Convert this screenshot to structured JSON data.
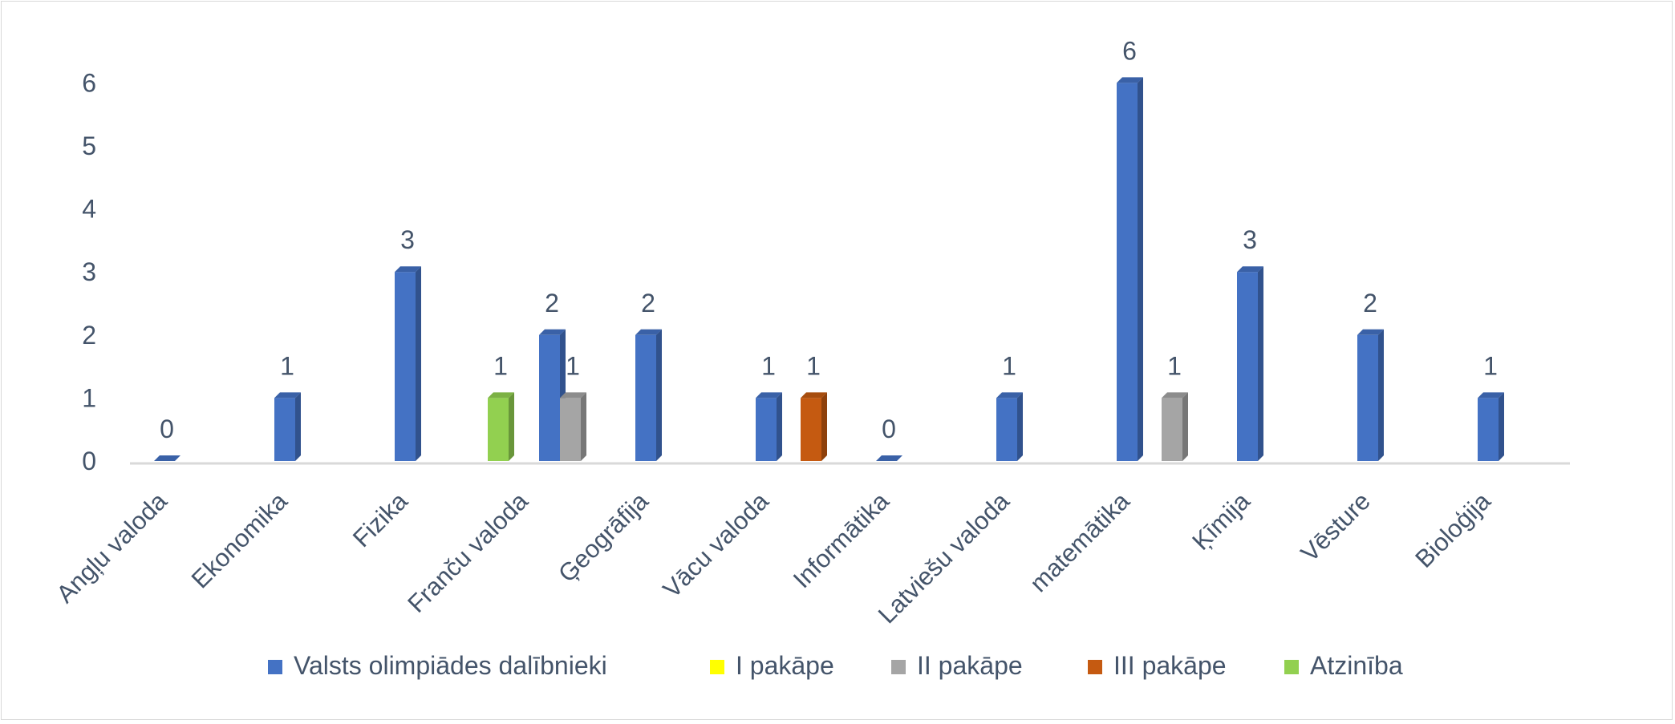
{
  "chart_data": {
    "type": "bar",
    "categories": [
      "Angļu valoda",
      "Ekonomika",
      "Fizika",
      "Franču valoda",
      "Ģeogrāfija",
      "Vācu valoda",
      "Informātika",
      "Latviešu valoda",
      "matemātika",
      "Ķīmija",
      "Vēsture",
      "Bioloģija"
    ],
    "series": [
      {
        "name": "Valsts olimpiādes dalībnieki",
        "color": "#4472c4",
        "values": [
          0,
          1,
          3,
          2,
          2,
          1,
          0,
          1,
          6,
          3,
          2,
          1
        ]
      },
      {
        "name": "I pakāpe",
        "color": "#ffff00",
        "values": [
          null,
          null,
          null,
          null,
          null,
          null,
          null,
          null,
          null,
          null,
          null,
          null
        ]
      },
      {
        "name": "II pakāpe",
        "color": "#a5a5a5",
        "values": [
          null,
          null,
          null,
          1,
          null,
          null,
          null,
          null,
          1,
          null,
          null,
          null
        ]
      },
      {
        "name": "III pakāpe",
        "color": "#c55a11",
        "values": [
          null,
          null,
          null,
          null,
          null,
          1,
          null,
          null,
          null,
          null,
          null,
          null
        ]
      },
      {
        "name": "Atzinība",
        "color": "#92d050",
        "values": [
          null,
          null,
          null,
          1,
          null,
          null,
          null,
          null,
          null,
          null,
          null,
          null
        ]
      }
    ],
    "yticks": [
      "0",
      "1",
      "2",
      "3",
      "4",
      "5",
      "6"
    ],
    "ylim": [
      0,
      6
    ],
    "title": "",
    "xlabel": "",
    "ylabel": "",
    "grid": false,
    "legend_position": "bottom",
    "data_labels": true
  }
}
